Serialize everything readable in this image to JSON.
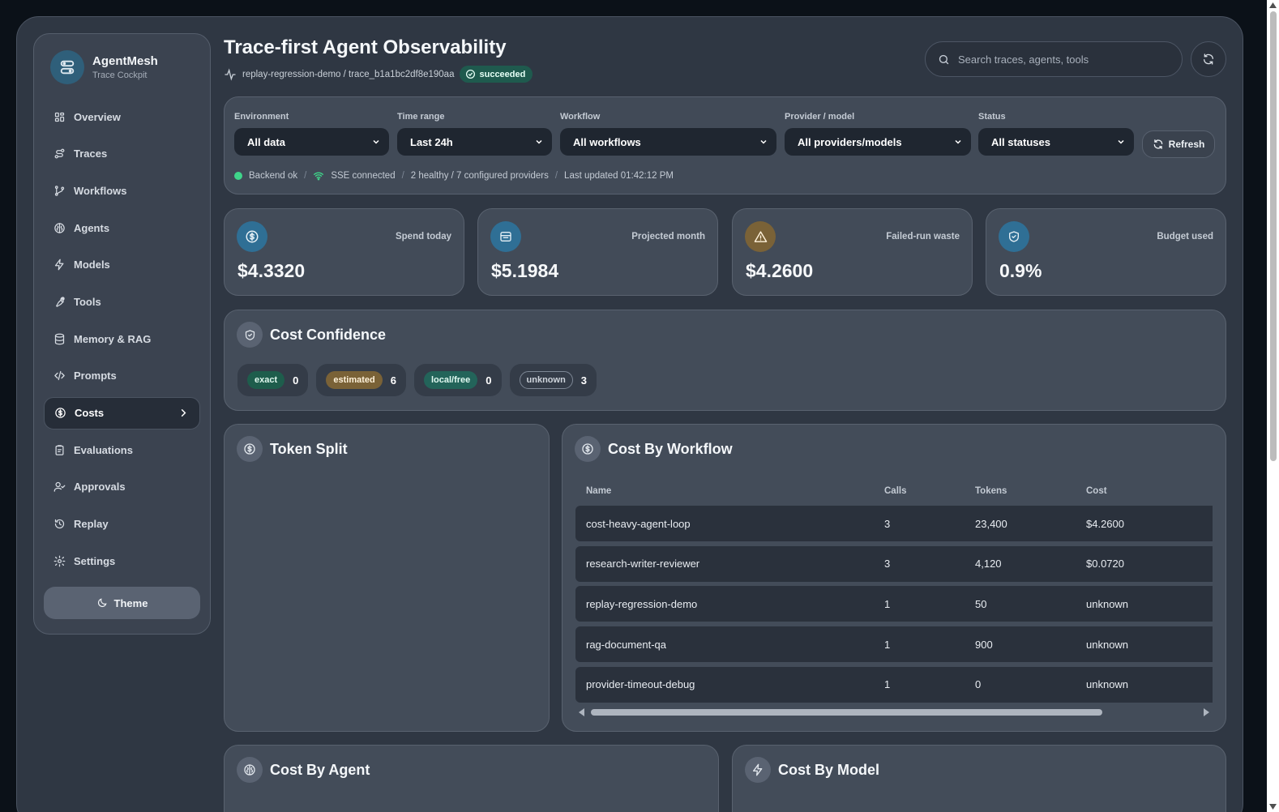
{
  "brand": {
    "name": "AgentMesh",
    "subtitle": "Trace Cockpit"
  },
  "nav": {
    "items": [
      {
        "label": "Overview",
        "icon": "grid-icon"
      },
      {
        "label": "Traces",
        "icon": "route-icon"
      },
      {
        "label": "Workflows",
        "icon": "git-branch-icon"
      },
      {
        "label": "Agents",
        "icon": "brain-icon"
      },
      {
        "label": "Models",
        "icon": "bolt-icon"
      },
      {
        "label": "Tools",
        "icon": "wrench-icon"
      },
      {
        "label": "Memory & RAG",
        "icon": "database-icon"
      },
      {
        "label": "Prompts",
        "icon": "code-icon"
      },
      {
        "label": "Costs",
        "icon": "dollar-icon",
        "active": true
      },
      {
        "label": "Evaluations",
        "icon": "clipboard-icon"
      },
      {
        "label": "Approvals",
        "icon": "user-check-icon"
      },
      {
        "label": "Replay",
        "icon": "history-icon"
      },
      {
        "label": "Settings",
        "icon": "gear-icon"
      }
    ],
    "theme_label": "Theme"
  },
  "header": {
    "title": "Trace-first Agent Observability",
    "trace_path": "replay-regression-demo / trace_b1a1bc2df8e190aa",
    "status": "succeeded",
    "search_placeholder": "Search traces, agents, tools"
  },
  "filters": {
    "environment": {
      "label": "Environment",
      "value": "All data"
    },
    "time_range": {
      "label": "Time range",
      "value": "Last 24h"
    },
    "workflow": {
      "label": "Workflow",
      "value": "All workflows"
    },
    "provider": {
      "label": "Provider / model",
      "value": "All providers/models"
    },
    "status": {
      "label": "Status",
      "value": "All statuses"
    },
    "refresh_label": "Refresh",
    "health": {
      "backend": "Backend ok",
      "sse": "SSE connected",
      "providers": "2 healthy / 7 configured providers",
      "updated": "Last updated 01:42:12 PM"
    }
  },
  "stats": [
    {
      "label": "Spend today",
      "value": "$4.3320",
      "icon": "dollar-icon",
      "color": "#2f6f95"
    },
    {
      "label": "Projected month",
      "value": "$5.1984",
      "icon": "calendar-icon",
      "color": "#2f6f95"
    },
    {
      "label": "Failed-run waste",
      "value": "$4.2600",
      "icon": "warning-icon",
      "color": "#7a6237"
    },
    {
      "label": "Budget used",
      "value": "0.9%",
      "icon": "shield-icon",
      "color": "#2f6f95"
    }
  ],
  "confidence": {
    "title": "Cost Confidence",
    "chips": [
      {
        "tag": "exact",
        "count": "0"
      },
      {
        "tag": "estimated",
        "count": "6"
      },
      {
        "tag": "local/free",
        "count": "0"
      },
      {
        "tag": "unknown",
        "count": "3"
      }
    ]
  },
  "token_split": {
    "title": "Token Split"
  },
  "cost_by_workflow": {
    "title": "Cost By Workflow",
    "columns": [
      "Name",
      "Calls",
      "Tokens",
      "Cost"
    ],
    "rows": [
      [
        "cost-heavy-agent-loop",
        "3",
        "23,400",
        "$4.2600"
      ],
      [
        "research-writer-reviewer",
        "3",
        "4,120",
        "$0.0720"
      ],
      [
        "replay-regression-demo",
        "1",
        "50",
        "unknown"
      ],
      [
        "rag-document-qa",
        "1",
        "900",
        "unknown"
      ],
      [
        "provider-timeout-debug",
        "1",
        "0",
        "unknown"
      ]
    ]
  },
  "cost_by_agent": {
    "title": "Cost By Agent"
  },
  "cost_by_model": {
    "title": "Cost By Model"
  }
}
